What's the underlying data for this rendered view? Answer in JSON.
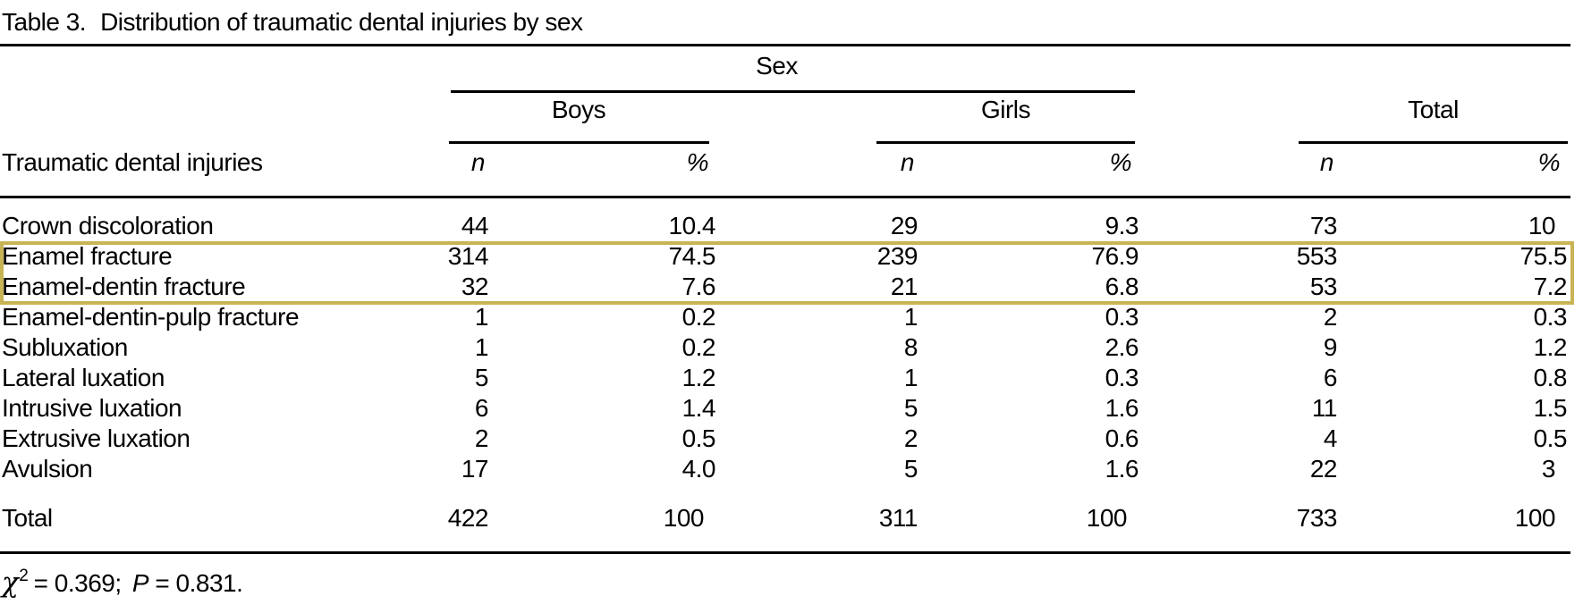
{
  "title": {
    "label": "Table 3.",
    "text": "Distribution of traumatic dental injuries by sex"
  },
  "table": {
    "sex_header": "Sex",
    "groups": [
      {
        "label": "Boys"
      },
      {
        "label": "Girls"
      },
      {
        "label": "Total"
      }
    ],
    "stub_header": "Traumatic dental injuries",
    "n_header": "n",
    "pct_header": "%",
    "column_types": [
      "n",
      "pct",
      "n",
      "pct",
      "n",
      "pct"
    ],
    "rows": [
      {
        "label": "Crown discoloration",
        "values": [
          "44",
          "10.4",
          "29",
          "9.3",
          "73",
          "10"
        ],
        "highlighted": false
      },
      {
        "label": "Enamel fracture",
        "values": [
          "314",
          "74.5",
          "239",
          "76.9",
          "553",
          "75.5"
        ],
        "highlighted": true
      },
      {
        "label": "Enamel-dentin fracture",
        "values": [
          "32",
          "7.6",
          "21",
          "6.8",
          "53",
          "7.2"
        ],
        "highlighted": true
      },
      {
        "label": "Enamel-dentin-pulp fracture",
        "values": [
          "1",
          "0.2",
          "1",
          "0.3",
          "2",
          "0.3"
        ],
        "highlighted": false
      },
      {
        "label": "Subluxation",
        "values": [
          "1",
          "0.2",
          "8",
          "2.6",
          "9",
          "1.2"
        ],
        "highlighted": false
      },
      {
        "label": "Lateral luxation",
        "values": [
          "5",
          "1.2",
          "1",
          "0.3",
          "6",
          "0.8"
        ],
        "highlighted": false
      },
      {
        "label": "Intrusive luxation",
        "values": [
          "6",
          "1.4",
          "5",
          "1.6",
          "11",
          "1.5"
        ],
        "highlighted": false
      },
      {
        "label": "Extrusive luxation",
        "values": [
          "2",
          "0.5",
          "2",
          "0.6",
          "4",
          "0.5"
        ],
        "highlighted": false
      },
      {
        "label": "Avulsion",
        "values": [
          "17",
          "4.0",
          "5",
          "1.6",
          "22",
          "3"
        ],
        "highlighted": false
      }
    ],
    "total_row": {
      "label": "Total",
      "values": [
        "422",
        "100",
        "311",
        "100",
        "733",
        "100"
      ]
    }
  },
  "footnote": {
    "chi_symbol": "χ",
    "chi_sup": "2",
    "chi_eq": "= 0.369;",
    "p_symbol": "P",
    "p_eq": "= 0.831."
  },
  "highlight": {
    "color": "#C9B455"
  }
}
